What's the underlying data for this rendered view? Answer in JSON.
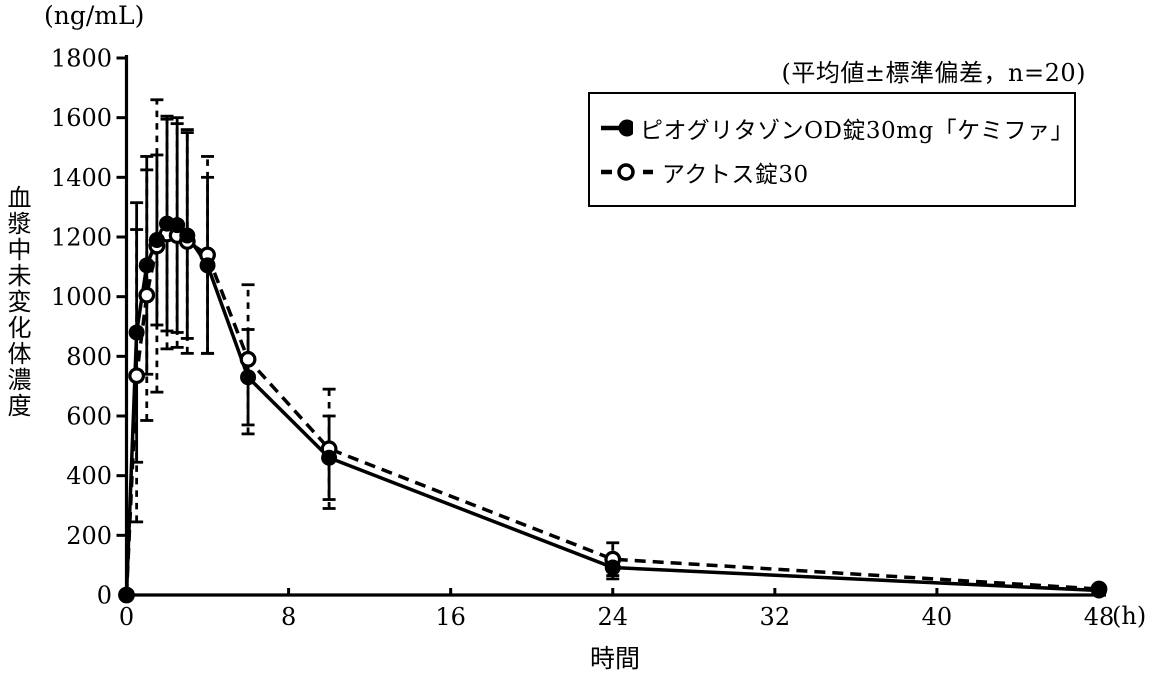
{
  "chart_data": {
    "type": "line",
    "y_unit": "(ng/mL)",
    "ylabel": "血漿中未変化体濃度",
    "xlabel": "時間",
    "x_unit": "(h)",
    "annotation": "(平均値±標準偏差，n=20)",
    "ylim": [
      0,
      1800
    ],
    "xlim": [
      0,
      48
    ],
    "y_ticks": [
      0,
      200,
      400,
      600,
      800,
      1000,
      1200,
      1400,
      1600,
      1800
    ],
    "x_ticks": [
      0,
      8,
      16,
      24,
      32,
      40,
      48
    ],
    "grid": false,
    "legend_position": "top-right",
    "error_bars": "mean ± standard deviation",
    "n": 20,
    "line_color": "#000000",
    "background_color": "#ffffff",
    "x_hours": [
      0,
      0.5,
      1,
      1.5,
      2,
      2.5,
      3,
      4,
      6,
      10,
      24,
      48
    ],
    "series": [
      {
        "id": "kemipha",
        "name": "ピオグリタゾンOD錠30mg「ケミファ」",
        "marker": "filled-circle",
        "line": "solid",
        "mean": [
          0,
          880,
          1105,
          1190,
          1245,
          1240,
          1205,
          1105,
          730,
          460,
          92,
          15
        ],
        "sd": [
          0,
          435,
          365,
          285,
          360,
          360,
          345,
          295,
          160,
          140,
          38,
          0
        ]
      },
      {
        "id": "actos",
        "name": "アクトス錠30",
        "marker": "open-circle",
        "line": "dashed",
        "mean": [
          0,
          735,
          1005,
          1170,
          1210,
          1205,
          1185,
          1140,
          790,
          490,
          120,
          20
        ],
        "sd": [
          0,
          490,
          420,
          490,
          385,
          375,
          375,
          330,
          250,
          200,
          55,
          0
        ]
      }
    ]
  }
}
